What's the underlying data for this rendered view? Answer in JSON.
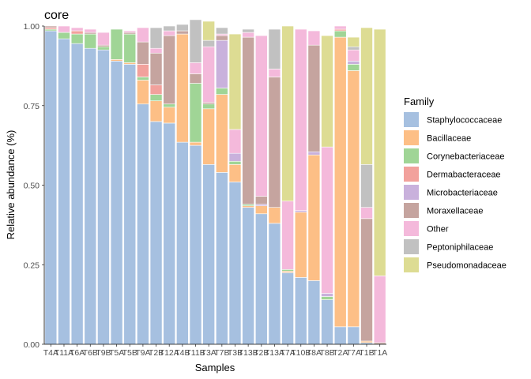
{
  "chart_data": {
    "type": "bar",
    "stacked": true,
    "title": "core",
    "xlabel": "Samples",
    "ylabel": "Relative abundance (%)",
    "ylim": [
      0,
      1
    ],
    "yticks": [
      "0.00",
      "0.25",
      "0.50",
      "0.75",
      "1.00"
    ],
    "legend_title": "Family",
    "legend_position": "right",
    "categories": [
      "T4A",
      "T11A",
      "T6A",
      "T6B",
      "T9B",
      "T5A",
      "T5B",
      "T9A",
      "T2B",
      "T12A",
      "T4B",
      "T11B",
      "T3A",
      "T7B",
      "T3B",
      "T13B",
      "T2B",
      "T13A",
      "T7A",
      "T10B",
      "T8A",
      "T8B",
      "T2A",
      "T7A",
      "T1B",
      "T1A"
    ],
    "x_tick_labels": [
      "T4A",
      "T11A",
      "T6A",
      "T6B",
      "T9B",
      "T5A",
      "T5B",
      "T9A",
      "T2B",
      "T12A",
      "T4B",
      "T11B",
      "T3A",
      "T7B",
      "T3B",
      "T13B",
      "T2B",
      "T13A",
      "T7A",
      "T10B",
      "T8A",
      "T8B",
      "T2A",
      "T7A",
      "T1B",
      "T1A"
    ],
    "series": [
      {
        "name": "Staphylococcaceae",
        "color": "#A6C0E0",
        "values": [
          0.985,
          0.96,
          0.945,
          0.93,
          0.925,
          0.89,
          0.88,
          0.755,
          0.7,
          0.695,
          0.635,
          0.625,
          0.565,
          0.54,
          0.51,
          0.43,
          0.41,
          0.38,
          0.225,
          0.21,
          0.2,
          0.14,
          0.055,
          0.055,
          0.005,
          0.0
        ]
      },
      {
        "name": "Bacillaceae",
        "color": "#FDBF86",
        "values": [
          0,
          0,
          0,
          0,
          0,
          0.005,
          0.005,
          0.075,
          0.065,
          0.05,
          0.34,
          0.01,
          0.175,
          0.245,
          0.055,
          0.005,
          0.025,
          0.05,
          0.005,
          0.205,
          0.395,
          0.0,
          0.91,
          0.805,
          0.005,
          0.0
        ]
      },
      {
        "name": "Corynebacteriaceae",
        "color": "#A0D596",
        "values": [
          0.005,
          0.02,
          0.03,
          0.045,
          0.01,
          0.095,
          0.09,
          0.01,
          0.02,
          0.01,
          0.0,
          0.185,
          0.015,
          0.02,
          0.01,
          0.005,
          0.0,
          0.0,
          0.005,
          0.0,
          0.0,
          0.01,
          0.02,
          0.02,
          0.0,
          0.0
        ]
      },
      {
        "name": "Dermabacteraceae",
        "color": "#F2A19C",
        "values": [
          0.005,
          0.0,
          0.01,
          0.0,
          0.0,
          0.0,
          0.0,
          0.04,
          0.03,
          0.0,
          0.0,
          0.0,
          0.0,
          0.0,
          0.0,
          0.0,
          0.0,
          0.0,
          0.0,
          0.0,
          0.0,
          0.0,
          0.005,
          0.0,
          0.0,
          0.0
        ]
      },
      {
        "name": "Microbacteriaceae",
        "color": "#C9B1DC",
        "values": [
          0,
          0,
          0,
          0,
          0,
          0,
          0,
          0,
          0,
          0,
          0,
          0,
          0,
          0.15,
          0.025,
          0.0,
          0.005,
          0.0,
          0.0,
          0.005,
          0.01,
          0.01,
          0.0,
          0.01,
          0.0,
          0.0
        ]
      },
      {
        "name": "Moraxellaceae",
        "color": "#C5A49F",
        "values": [
          0.005,
          0.0,
          0.0,
          0.005,
          0.005,
          0.0,
          0.005,
          0.07,
          0.1,
          0.215,
          0.01,
          0.03,
          0.005,
          0.015,
          0.0,
          0.525,
          0.025,
          0.41,
          0.0,
          0.0,
          0.335,
          0.0,
          0.0,
          0.0,
          0.385,
          0.005
        ]
      },
      {
        "name": "Other",
        "color": "#F4B9DB",
        "values": [
          0,
          0.02,
          0.01,
          0.01,
          0.04,
          0.0,
          0.005,
          0.045,
          0.015,
          0.015,
          0.0,
          0.035,
          0.175,
          0.005,
          0.075,
          0.015,
          0.505,
          0.025,
          0.215,
          0.57,
          0.045,
          0.46,
          0.01,
          0.035,
          0.035,
          0.21
        ]
      },
      {
        "name": "Peptoniphilaceae",
        "color": "#C1C1C1",
        "values": [
          0,
          0,
          0,
          0,
          0,
          0,
          0,
          0,
          0.065,
          0.015,
          0.02,
          0.135,
          0.02,
          0.02,
          0.0,
          0.01,
          0.0,
          0.125,
          0.0,
          0.0,
          0.0,
          0.0,
          0.0,
          0.01,
          0.135,
          0.0
        ]
      },
      {
        "name": "Pseudomonadaceae",
        "color": "#DDDC93",
        "values": [
          0,
          0,
          0,
          0,
          0,
          0,
          0,
          0,
          0,
          0,
          0,
          0,
          0.06,
          0.0,
          0.3,
          0.0,
          0.0,
          0.0,
          0.55,
          0.0,
          0.0,
          0.35,
          0.0,
          0.03,
          0.43,
          0.775
        ]
      }
    ]
  }
}
